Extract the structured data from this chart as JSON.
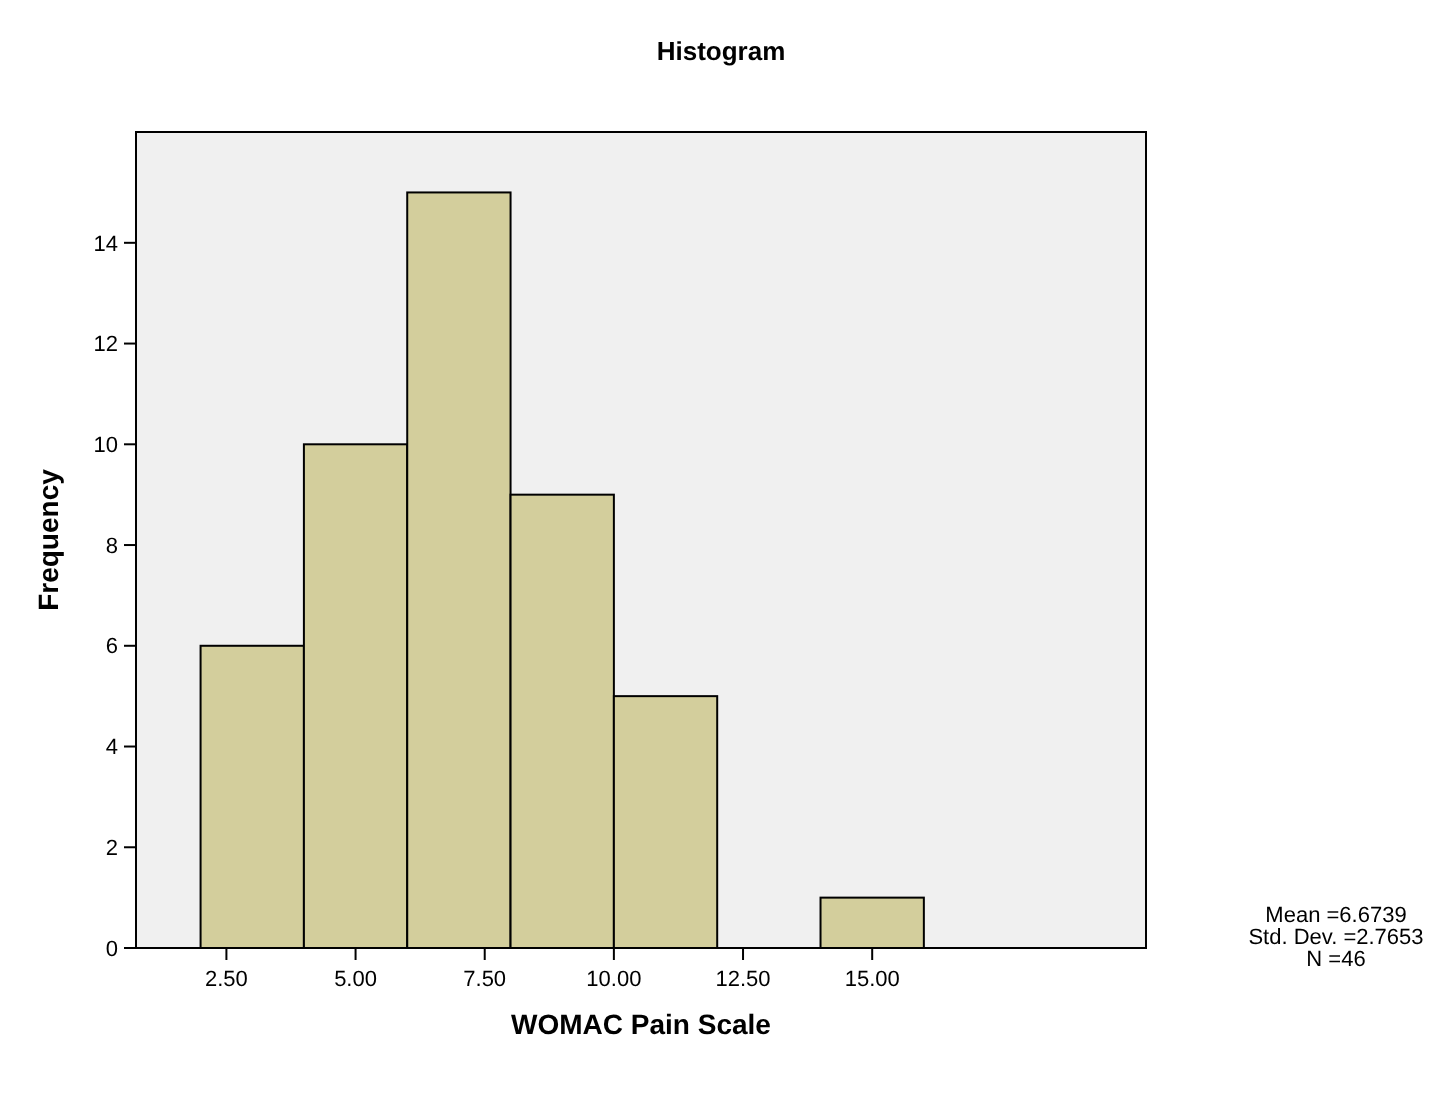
{
  "chart_data": {
    "type": "histogram",
    "title": "Histogram",
    "xlabel": "WOMAC Pain Scale",
    "ylabel": "Frequency",
    "bins": [
      2,
      4,
      6,
      8,
      10,
      12,
      14,
      16
    ],
    "values": [
      6,
      10,
      15,
      9,
      5,
      0,
      1
    ],
    "color": "#d3ce9c",
    "xlim": [
      0.75,
      20.3
    ],
    "ylim": [
      0,
      16.2
    ],
    "xticks": [
      {
        "value": 2.5,
        "label": "2.50"
      },
      {
        "value": 5,
        "label": "5.00"
      },
      {
        "value": 7.5,
        "label": "7.50"
      },
      {
        "value": 10,
        "label": "10.00"
      },
      {
        "value": 12.5,
        "label": "12.50"
      },
      {
        "value": 15,
        "label": "15.00"
      }
    ],
    "yticks": [
      0,
      2,
      4,
      6,
      8,
      10,
      12,
      14
    ],
    "annotations": [
      "Mean =6.6739",
      "Std. Dev. =2.7653",
      "N =46"
    ]
  }
}
